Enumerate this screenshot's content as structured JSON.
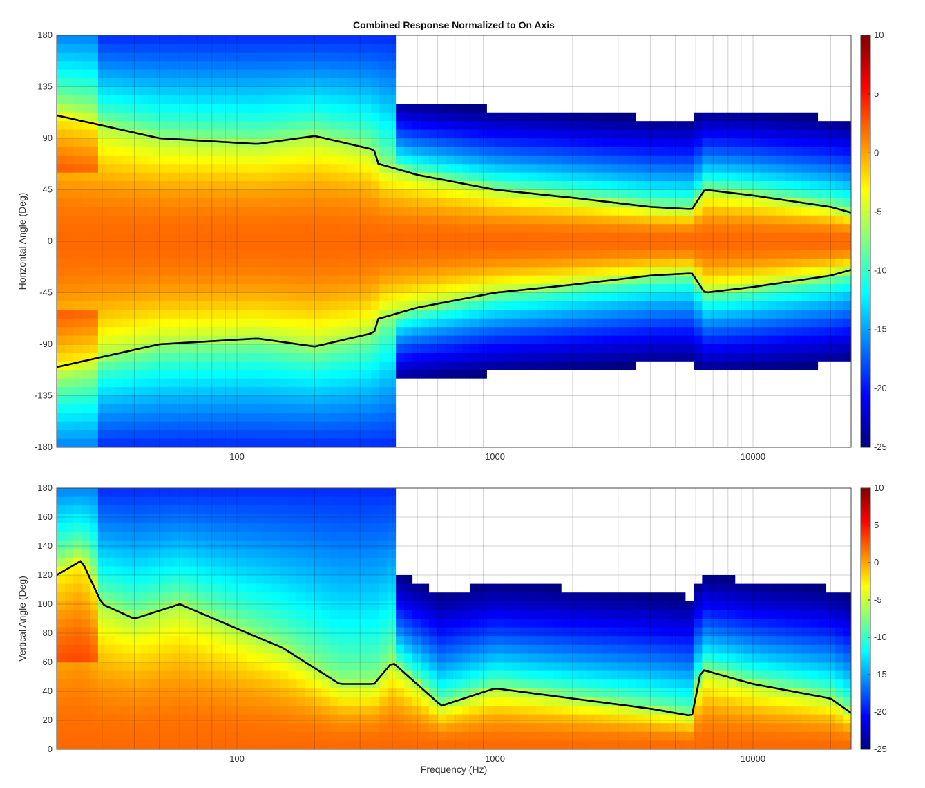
{
  "chart_data": [
    {
      "type": "heatmap",
      "title": "Combined Response Normalized to On Axis",
      "xlabel": "",
      "ylabel": "Horizontal Angle (Deg)",
      "x_scale": "log",
      "xlim": [
        20,
        24000
      ],
      "ylim": [
        -180,
        180
      ],
      "x_ticks": [
        "100",
        "1000",
        "10000"
      ],
      "x_tick_values": [
        100,
        1000,
        10000
      ],
      "y_ticks": [
        "180",
        "135",
        "90",
        "45",
        "0",
        "-45",
        "-90",
        "-135",
        "-180"
      ],
      "y_tick_values": [
        180,
        135,
        90,
        45,
        0,
        -45,
        -90,
        -135,
        -180
      ],
      "colorbar": {
        "ticks": [
          "10",
          "5",
          "0",
          "-5",
          "-10",
          "-15",
          "-20",
          "-25"
        ],
        "tick_values": [
          10,
          5,
          0,
          -5,
          -10,
          -15,
          -20,
          -25
        ],
        "range": [
          -25,
          10
        ],
        "colormap": "jet"
      },
      "contour_level_db": -6,
      "contour_boundary_angle": [
        {
          "freq": 20,
          "angle": 110
        },
        {
          "freq": 50,
          "angle": 90
        },
        {
          "freq": 120,
          "angle": 85
        },
        {
          "freq": 200,
          "angle": 92
        },
        {
          "freq": 340,
          "angle": 80
        },
        {
          "freq": 350,
          "angle": 68
        },
        {
          "freq": 500,
          "angle": 58
        },
        {
          "freq": 1000,
          "angle": 45
        },
        {
          "freq": 2000,
          "angle": 38
        },
        {
          "freq": 4000,
          "angle": 30
        },
        {
          "freq": 5800,
          "angle": 28
        },
        {
          "freq": 6500,
          "angle": 45
        },
        {
          "freq": 10000,
          "angle": 40
        },
        {
          "freq": 20000,
          "angle": 30
        },
        {
          "freq": 24000,
          "angle": 25
        }
      ]
    },
    {
      "type": "heatmap",
      "title": "",
      "xlabel": "Frequency (Hz)",
      "ylabel": "Vertical Angle (Deg)",
      "x_scale": "log",
      "xlim": [
        20,
        24000
      ],
      "ylim": [
        0,
        180
      ],
      "x_ticks": [
        "100",
        "1000",
        "10000"
      ],
      "x_tick_values": [
        100,
        1000,
        10000
      ],
      "y_ticks": [
        "180",
        "160",
        "140",
        "120",
        "100",
        "80",
        "60",
        "40",
        "20",
        "0"
      ],
      "y_tick_values": [
        180,
        160,
        140,
        120,
        100,
        80,
        60,
        40,
        20,
        0
      ],
      "colorbar": {
        "ticks": [
          "10",
          "5",
          "0",
          "-5",
          "-10",
          "-15",
          "-20",
          "-25"
        ],
        "tick_values": [
          10,
          5,
          0,
          -5,
          -10,
          -15,
          -20,
          -25
        ],
        "range": [
          -25,
          10
        ],
        "colormap": "jet"
      },
      "contour_level_db": -6,
      "contour_boundary_angle": [
        {
          "freq": 20,
          "angle": 120
        },
        {
          "freq": 25,
          "angle": 130
        },
        {
          "freq": 30,
          "angle": 100
        },
        {
          "freq": 40,
          "angle": 90
        },
        {
          "freq": 60,
          "angle": 100
        },
        {
          "freq": 110,
          "angle": 80
        },
        {
          "freq": 150,
          "angle": 70
        },
        {
          "freq": 250,
          "angle": 45
        },
        {
          "freq": 340,
          "angle": 45
        },
        {
          "freq": 400,
          "angle": 60
        },
        {
          "freq": 620,
          "angle": 30
        },
        {
          "freq": 1000,
          "angle": 42
        },
        {
          "freq": 2000,
          "angle": 35
        },
        {
          "freq": 4000,
          "angle": 28
        },
        {
          "freq": 5800,
          "angle": 23
        },
        {
          "freq": 6300,
          "angle": 55
        },
        {
          "freq": 10000,
          "angle": 45
        },
        {
          "freq": 20000,
          "angle": 35
        },
        {
          "freq": 24000,
          "angle": 25
        }
      ]
    }
  ]
}
